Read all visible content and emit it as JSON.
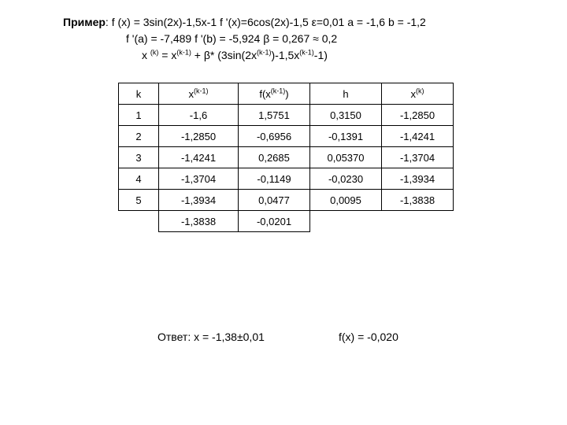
{
  "header": {
    "title": "Пример",
    "line1_a": ": f (x) = 3sin(2x)-1,5x-1   f '(x)=6cos(2x)-1,5  ε=0,01  a = -1,6  b = -1,2",
    "line2": "f '(a) = -7,489   f '(b) = -5,924  β = 0,267 ≈ 0,2",
    "line3_a": "x ",
    "line3_sup1": "(k)",
    "line3_b": " = x",
    "line3_sup2": "(k-1)",
    "line3_c": " + β* (3sin(2x",
    "line3_sup3": "(k-1)",
    "line3_d": ")-1,5x",
    "line3_sup4": "(k-1)",
    "line3_e": "-1)"
  },
  "table": {
    "head": {
      "k": "k",
      "xk1_a": "x",
      "xk1_sup": "(k-1)",
      "fxk1_a": "f(x",
      "fxk1_sup": "(k-1)",
      "fxk1_b": ")",
      "h": "h",
      "xk_a": "x",
      "xk_sup": "(k)"
    },
    "rows": [
      {
        "k": "1",
        "xk1": "-1,6",
        "fxk1": "1,5751",
        "h": "0,3150",
        "xk": "-1,2850"
      },
      {
        "k": "2",
        "xk1": "-1,2850",
        "fxk1": "-0,6956",
        "h": "-0,1391",
        "xk": "-1,4241"
      },
      {
        "k": "3",
        "xk1": "-1,4241",
        "fxk1": "0,2685",
        "h": "0,05370",
        "xk": "-1,3704"
      },
      {
        "k": "4",
        "xk1": "-1,3704",
        "fxk1": "-0,1149",
        "h": "-0,0230",
        "xk": "-1,3934"
      },
      {
        "k": "5",
        "xk1": "-1,3934",
        "fxk1": "0,0477",
        "h": "0,0095",
        "xk": "-1,3838"
      }
    ],
    "lastrow": {
      "xk1": "-1,3838",
      "fxk1": "-0,0201"
    }
  },
  "answer": {
    "label": "Ответ:  x = -1,38±0,01",
    "fx": "f(x) = -0,020"
  }
}
